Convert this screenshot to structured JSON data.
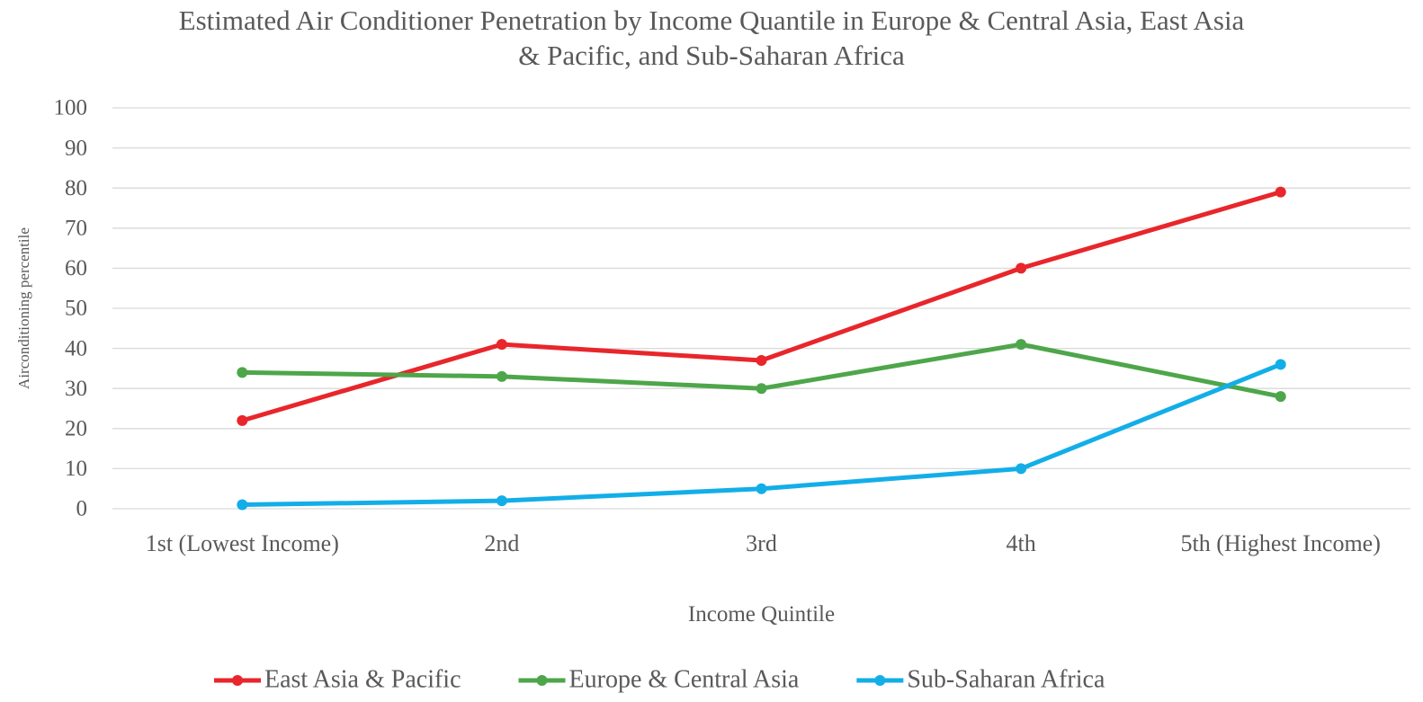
{
  "chart_data": {
    "type": "line",
    "title": "Estimated Air Conditioner Penetration by Income Quantile in Europe & Central Asia, East Asia & Pacific, and Sub-Saharan Africa",
    "x_label": "Income Quintile",
    "y_label": "Airconditioning percentile",
    "categories": [
      "1st (Lowest Income)",
      "2nd",
      "3rd",
      "4th",
      "5th (Highest Income)"
    ],
    "series": [
      {
        "name": "East Asia & Pacific",
        "color": "#e8262b",
        "values": [
          22,
          41,
          37,
          60,
          79
        ]
      },
      {
        "name": "Europe & Central Asia",
        "color": "#4ea64a",
        "values": [
          34,
          33,
          30,
          41,
          28
        ]
      },
      {
        "name": "Sub-Saharan Africa",
        "color": "#13aee8",
        "values": [
          1,
          2,
          5,
          10,
          36
        ]
      }
    ],
    "ylim": [
      0,
      100
    ],
    "yticks": [
      0,
      10,
      20,
      30,
      40,
      50,
      60,
      70,
      80,
      90,
      100
    ],
    "grid": true,
    "legend": "bottom"
  }
}
